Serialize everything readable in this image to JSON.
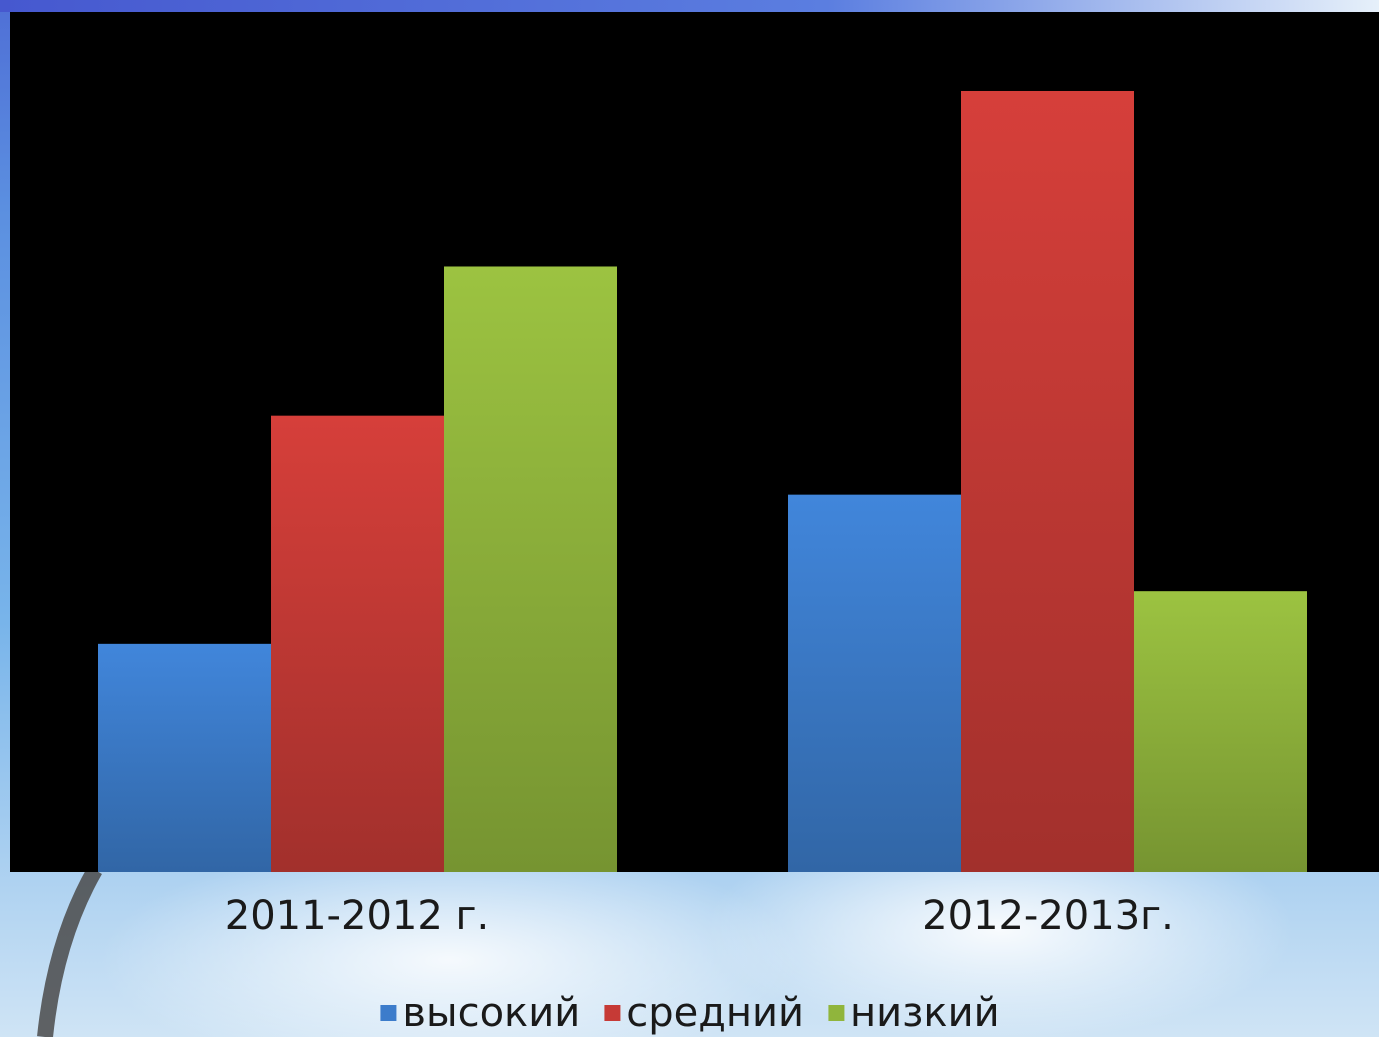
{
  "chart_data": {
    "type": "bar",
    "categories": [
      "2011-2012 г.",
      "2012-2013г."
    ],
    "series": [
      {
        "name": "высокий",
        "color": "#3c7ccb",
        "values": [
          26,
          43
        ]
      },
      {
        "name": "средний",
        "color": "#c63a36",
        "values": [
          52,
          89
        ]
      },
      {
        "name": "низкий",
        "color": "#90b53c",
        "values": [
          69,
          32
        ]
      }
    ],
    "ylim": [
      0,
      98
    ],
    "grid": false,
    "legend_position": "bottom",
    "background_color": "#000000"
  }
}
